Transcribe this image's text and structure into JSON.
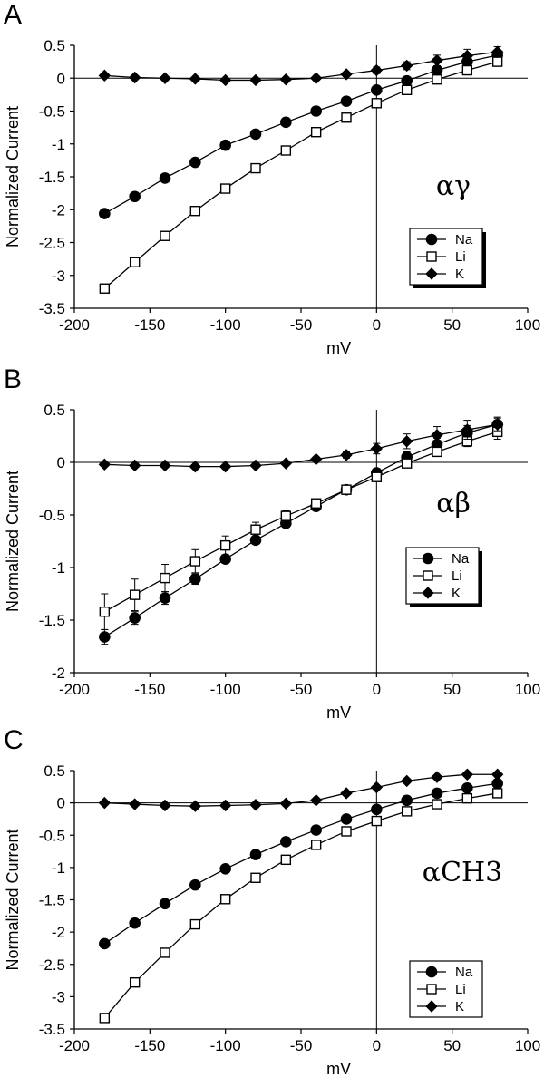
{
  "chart_data": [
    {
      "panel_label": "A",
      "type": "line",
      "xlabel": "mV",
      "ylabel": "Normalized Current",
      "xlim": [
        -200,
        100
      ],
      "ylim": [
        -3.5,
        0.5
      ],
      "xticks": [
        -200,
        -150,
        -100,
        -50,
        0,
        50,
        100
      ],
      "yticks": [
        0.5,
        0,
        -0.5,
        -1,
        -1.5,
        -2,
        -2.5,
        -3,
        -3.5
      ],
      "annotation": "αγ",
      "legend": [
        "Na",
        "Li",
        "K"
      ],
      "x": [
        -180,
        -160,
        -140,
        -120,
        -100,
        -80,
        -60,
        -40,
        -20,
        0,
        20,
        40,
        60,
        80
      ],
      "series": [
        {
          "name": "Na",
          "marker": "filled-circle",
          "values": [
            -2.06,
            -1.8,
            -1.52,
            -1.28,
            -1.02,
            -0.85,
            -0.67,
            -0.5,
            -0.35,
            -0.18,
            -0.04,
            0.12,
            0.25,
            0.35
          ],
          "err": [
            0.02,
            0.02,
            0.02,
            0.02,
            0.02,
            0.02,
            0.02,
            0.02,
            0.02,
            0.02,
            0.03,
            0.05,
            0.06,
            0.07
          ]
        },
        {
          "name": "Li",
          "marker": "open-square",
          "values": [
            -3.2,
            -2.8,
            -2.4,
            -2.02,
            -1.68,
            -1.37,
            -1.1,
            -0.82,
            -0.6,
            -0.38,
            -0.18,
            -0.02,
            0.12,
            0.25
          ],
          "err": [
            0.06,
            0.06,
            0.05,
            0.05,
            0.04,
            0.04,
            0.03,
            0.03,
            0.03,
            0.03,
            0.04,
            0.05,
            0.06,
            0.06
          ]
        },
        {
          "name": "K",
          "marker": "filled-diamond",
          "values": [
            0.04,
            0.01,
            0.0,
            -0.01,
            -0.03,
            -0.03,
            -0.02,
            0.0,
            0.06,
            0.12,
            0.19,
            0.27,
            0.34,
            0.4
          ],
          "err": [
            0.01,
            0.01,
            0.01,
            0.01,
            0.01,
            0.01,
            0.01,
            0.02,
            0.03,
            0.05,
            0.06,
            0.08,
            0.1,
            0.08
          ]
        }
      ]
    },
    {
      "panel_label": "B",
      "type": "line",
      "xlabel": "mV",
      "ylabel": "Normalized Current",
      "xlim": [
        -200,
        100
      ],
      "ylim": [
        -2,
        0.5
      ],
      "xticks": [
        -200,
        -150,
        -100,
        -50,
        0,
        50,
        100
      ],
      "yticks": [
        0.5,
        0,
        -0.5,
        -1,
        -1.5,
        -2
      ],
      "annotation": "αβ",
      "legend": [
        "Na",
        "Li",
        "K"
      ],
      "x": [
        -180,
        -160,
        -140,
        -120,
        -100,
        -80,
        -60,
        -40,
        -20,
        0,
        20,
        40,
        60,
        80
      ],
      "series": [
        {
          "name": "Na",
          "marker": "filled-circle",
          "values": [
            -1.66,
            -1.48,
            -1.29,
            -1.11,
            -0.92,
            -0.74,
            -0.58,
            -0.42,
            -0.26,
            -0.1,
            0.05,
            0.17,
            0.28,
            0.36
          ],
          "err": [
            0.07,
            0.06,
            0.06,
            0.05,
            0.04,
            0.04,
            0.03,
            0.03,
            0.03,
            0.04,
            0.05,
            0.06,
            0.07,
            0.07
          ]
        },
        {
          "name": "Li",
          "marker": "open-square",
          "values": [
            -1.42,
            -1.26,
            -1.1,
            -0.94,
            -0.79,
            -0.64,
            -0.51,
            -0.39,
            -0.26,
            -0.14,
            -0.01,
            0.1,
            0.2,
            0.29
          ],
          "err": [
            0.17,
            0.15,
            0.13,
            0.11,
            0.09,
            0.07,
            0.05,
            0.04,
            0.03,
            0.03,
            0.03,
            0.04,
            0.05,
            0.07
          ]
        },
        {
          "name": "K",
          "marker": "filled-diamond",
          "values": [
            -0.02,
            -0.03,
            -0.03,
            -0.04,
            -0.04,
            -0.03,
            -0.01,
            0.03,
            0.07,
            0.13,
            0.2,
            0.26,
            0.31,
            0.36
          ],
          "err": [
            0.01,
            0.01,
            0.01,
            0.01,
            0.01,
            0.01,
            0.01,
            0.02,
            0.03,
            0.05,
            0.07,
            0.08,
            0.09,
            0.06
          ]
        }
      ]
    },
    {
      "panel_label": "C",
      "type": "line",
      "xlabel": "mV",
      "ylabel": "Normalized Current",
      "xlim": [
        -200,
        100
      ],
      "ylim": [
        -3.5,
        0.5
      ],
      "xticks": [
        -200,
        -150,
        -100,
        -50,
        0,
        50,
        100
      ],
      "yticks": [
        0.5,
        0,
        -0.5,
        -1,
        -1.5,
        -2,
        -2.5,
        -3,
        -3.5
      ],
      "annotation": "αCH3",
      "legend": [
        "Na",
        "Li",
        "K"
      ],
      "x": [
        -180,
        -160,
        -140,
        -120,
        -100,
        -80,
        -60,
        -40,
        -20,
        0,
        20,
        40,
        60,
        80
      ],
      "series": [
        {
          "name": "Na",
          "marker": "filled-circle",
          "values": [
            -2.18,
            -1.86,
            -1.56,
            -1.27,
            -1.02,
            -0.8,
            -0.6,
            -0.42,
            -0.25,
            -0.1,
            0.04,
            0.15,
            0.23,
            0.3
          ],
          "err": [
            0.02,
            0.02,
            0.02,
            0.02,
            0.02,
            0.02,
            0.02,
            0.02,
            0.02,
            0.02,
            0.02,
            0.02,
            0.03,
            0.03
          ]
        },
        {
          "name": "Li",
          "marker": "open-square",
          "values": [
            -3.33,
            -2.78,
            -2.32,
            -1.88,
            -1.49,
            -1.16,
            -0.88,
            -0.65,
            -0.44,
            -0.28,
            -0.13,
            -0.02,
            0.07,
            0.15
          ],
          "err": [
            0.05,
            0.05,
            0.05,
            0.04,
            0.04,
            0.03,
            0.03,
            0.03,
            0.02,
            0.02,
            0.02,
            0.02,
            0.03,
            0.03
          ]
        },
        {
          "name": "K",
          "marker": "filled-diamond",
          "values": [
            0.0,
            -0.02,
            -0.04,
            -0.05,
            -0.04,
            -0.03,
            -0.01,
            0.04,
            0.15,
            0.24,
            0.34,
            0.4,
            0.44,
            0.44
          ],
          "err": [
            0.01,
            0.01,
            0.01,
            0.01,
            0.01,
            0.01,
            0.01,
            0.01,
            0.02,
            0.02,
            0.02,
            0.02,
            0.03,
            0.03
          ]
        }
      ]
    }
  ]
}
